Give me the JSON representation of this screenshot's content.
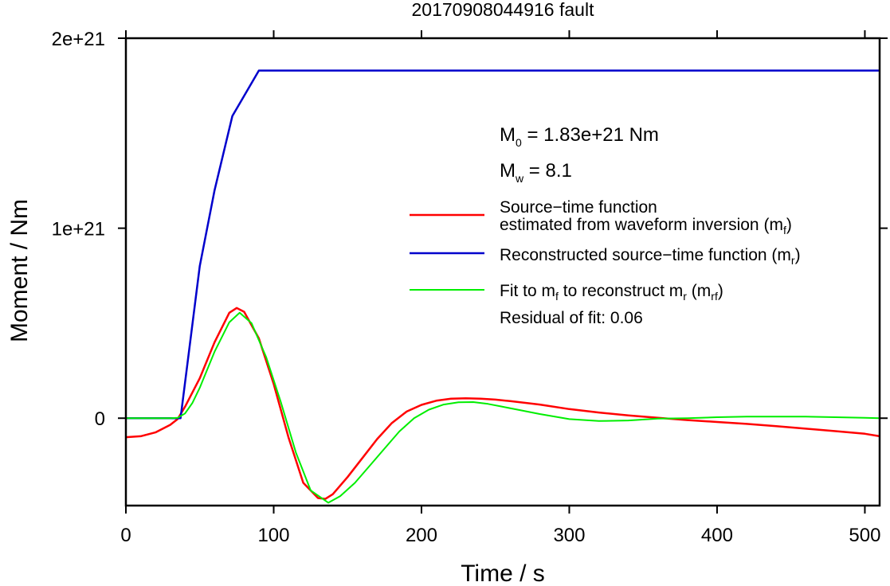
{
  "chart_data": {
    "type": "line",
    "title": "20170908044916 fault",
    "xlabel": "Time / s",
    "ylabel": "Moment / Nm",
    "xlim": [
      0,
      510
    ],
    "ylim": [
      -4.6e+20,
      2e+21
    ],
    "x_ticks": [
      0,
      100,
      200,
      300,
      400,
      500
    ],
    "x_tick_labels": [
      "0",
      "100",
      "200",
      "300",
      "400",
      "500"
    ],
    "y_ticks": [
      0,
      1e+21,
      2e+21
    ],
    "y_tick_labels": [
      "0",
      "1e+21",
      "2e+21"
    ],
    "grid": false,
    "legend_position": "right",
    "annotations": {
      "m0_label": "M",
      "m0_sub": "0",
      "m0_value": " = 1.83e+21 Nm",
      "mw_label": "M",
      "mw_sub": "w",
      "mw_value": " = 8.1",
      "residual": "Residual of fit: 0.06"
    },
    "legend": [
      {
        "line1": "Source−time function",
        "line2": "estimated from waveform inversion (m",
        "sub": "f",
        "tail": ")",
        "color": "#ff0000"
      },
      {
        "line1": "Reconstructed source−time function (m",
        "sub": "r",
        "tail": ")",
        "color": "#0000cc"
      },
      {
        "part1": "Fit to m",
        "sub1": "f",
        "part2": " to reconstruct m",
        "sub2": "r",
        "part3": " (m",
        "sub3": "rf",
        "tail": ")",
        "color": "#00ee00"
      }
    ],
    "series": [
      {
        "color": "#ff0000",
        "x": [
          0,
          10,
          20,
          30,
          35,
          40,
          50,
          60,
          70,
          75,
          80,
          90,
          100,
          110,
          120,
          130,
          135,
          140,
          150,
          160,
          170,
          180,
          190,
          200,
          210,
          220,
          230,
          240,
          250,
          260,
          280,
          300,
          320,
          340,
          360,
          380,
          400,
          420,
          440,
          460,
          480,
          500,
          510
        ],
        "y": [
          -1e+20,
          -9.5e+19,
          -7.5e+19,
          -3.5e+19,
          -5e+18,
          6e+19,
          2.1e+20,
          4e+20,
          5.55e+20,
          5.8e+20,
          5.6e+20,
          4.2e+20,
          1.8e+20,
          -1e+20,
          -3.4e+20,
          -4.2e+20,
          -4.25e+20,
          -4e+20,
          -3.1e+20,
          -2.1e+20,
          -1.1e+20,
          -2.5e+19,
          3.5e+19,
          7e+19,
          9.2e+19,
          1.03e+20,
          1.05e+20,
          1.03e+20,
          9.8e+19,
          9e+19,
          7.2e+19,
          4.8e+19,
          3e+19,
          1.5e+19,
          2e+18,
          -1e+19,
          -2e+19,
          -3e+19,
          -4.2e+19,
          -5.5e+19,
          -6.8e+19,
          -8.2e+19,
          -9.5e+19
        ]
      },
      {
        "color": "#0000cc",
        "x": [
          0,
          37,
          50,
          60,
          72,
          90,
          510
        ],
        "y": [
          0,
          0,
          8e+20,
          1.2e+21,
          1.59e+21,
          1.83e+21,
          1.83e+21
        ]
      },
      {
        "color": "#00ee00",
        "x": [
          0,
          30,
          35,
          40,
          45,
          50,
          60,
          70,
          77,
          85,
          95,
          105,
          115,
          125,
          137,
          145,
          155,
          165,
          175,
          185,
          195,
          205,
          215,
          225,
          235,
          245,
          255,
          265,
          280,
          300,
          320,
          340,
          360,
          380,
          400,
          420,
          440,
          460,
          480,
          500,
          510
        ],
        "y": [
          0,
          0,
          2e+18,
          2.5e+19,
          8e+19,
          1.6e+20,
          3.5e+20,
          5.05e+20,
          5.55e+20,
          5e+20,
          3.2e+20,
          8e+19,
          -1.8e+20,
          -3.8e+20,
          -4.45e+20,
          -4.1e+20,
          -3.4e+20,
          -2.5e+20,
          -1.6e+20,
          -7e+19,
          0.0,
          4.5e+19,
          7.2e+19,
          8.4e+19,
          8.5e+19,
          7.5e+19,
          6e+19,
          4.5e+19,
          2.2e+19,
          -5e+18,
          -1.5e+19,
          -1.2e+19,
          -2e+18,
          0.0,
          5e+18,
          8e+18,
          8e+18,
          8e+18,
          5e+18,
          2e+18,
          0.0
        ]
      }
    ]
  }
}
